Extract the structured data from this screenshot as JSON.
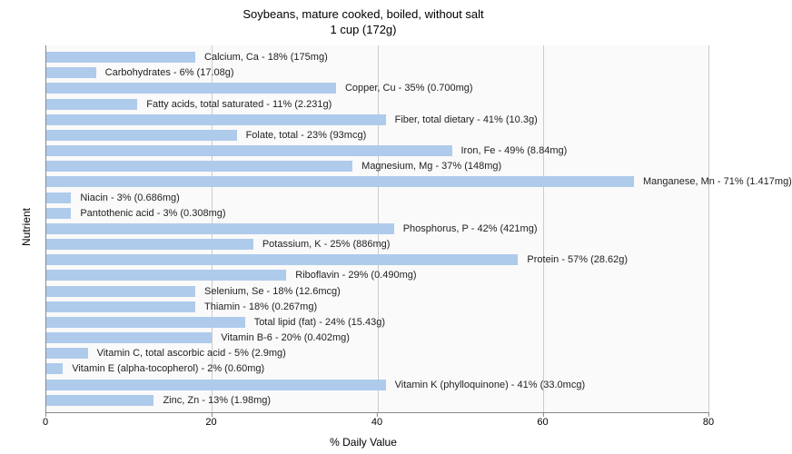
{
  "chart": {
    "type": "bar-horizontal",
    "title_line1": "Soybeans, mature cooked, boiled, without salt",
    "title_line2": "1 cup (172g)",
    "y_axis_label": "Nutrient",
    "x_axis_label": "% Daily Value",
    "background_color": "#fafafa",
    "bar_color": "#aecbeb",
    "grid_color": "#cccccc",
    "axis_color": "#888888",
    "text_color": "#222222",
    "title_fontsize": 13,
    "label_fontsize": 12,
    "bar_label_fontsize": 11,
    "tick_fontsize": 11,
    "xlim": [
      0,
      80
    ],
    "xticks": [
      0,
      20,
      40,
      60,
      80
    ],
    "nutrients": [
      {
        "label": "Calcium, Ca - 18% (175mg)",
        "value": 18
      },
      {
        "label": "Carbohydrates - 6% (17.08g)",
        "value": 6
      },
      {
        "label": "Copper, Cu - 35% (0.700mg)",
        "value": 35
      },
      {
        "label": "Fatty acids, total saturated - 11% (2.231g)",
        "value": 11
      },
      {
        "label": "Fiber, total dietary - 41% (10.3g)",
        "value": 41
      },
      {
        "label": "Folate, total - 23% (93mcg)",
        "value": 23
      },
      {
        "label": "Iron, Fe - 49% (8.84mg)",
        "value": 49
      },
      {
        "label": "Magnesium, Mg - 37% (148mg)",
        "value": 37
      },
      {
        "label": "Manganese, Mn - 71% (1.417mg)",
        "value": 71
      },
      {
        "label": "Niacin - 3% (0.686mg)",
        "value": 3
      },
      {
        "label": "Pantothenic acid - 3% (0.308mg)",
        "value": 3
      },
      {
        "label": "Phosphorus, P - 42% (421mg)",
        "value": 42
      },
      {
        "label": "Potassium, K - 25% (886mg)",
        "value": 25
      },
      {
        "label": "Protein - 57% (28.62g)",
        "value": 57
      },
      {
        "label": "Riboflavin - 29% (0.490mg)",
        "value": 29
      },
      {
        "label": "Selenium, Se - 18% (12.6mcg)",
        "value": 18
      },
      {
        "label": "Thiamin - 18% (0.267mg)",
        "value": 18
      },
      {
        "label": "Total lipid (fat) - 24% (15.43g)",
        "value": 24
      },
      {
        "label": "Vitamin B-6 - 20% (0.402mg)",
        "value": 20
      },
      {
        "label": "Vitamin C, total ascorbic acid - 5% (2.9mg)",
        "value": 5
      },
      {
        "label": "Vitamin E (alpha-tocopherol) - 2% (0.60mg)",
        "value": 2
      },
      {
        "label": "Vitamin K (phylloquinone) - 41% (33.0mcg)",
        "value": 41
      },
      {
        "label": "Zinc, Zn - 13% (1.98mg)",
        "value": 13
      }
    ]
  }
}
